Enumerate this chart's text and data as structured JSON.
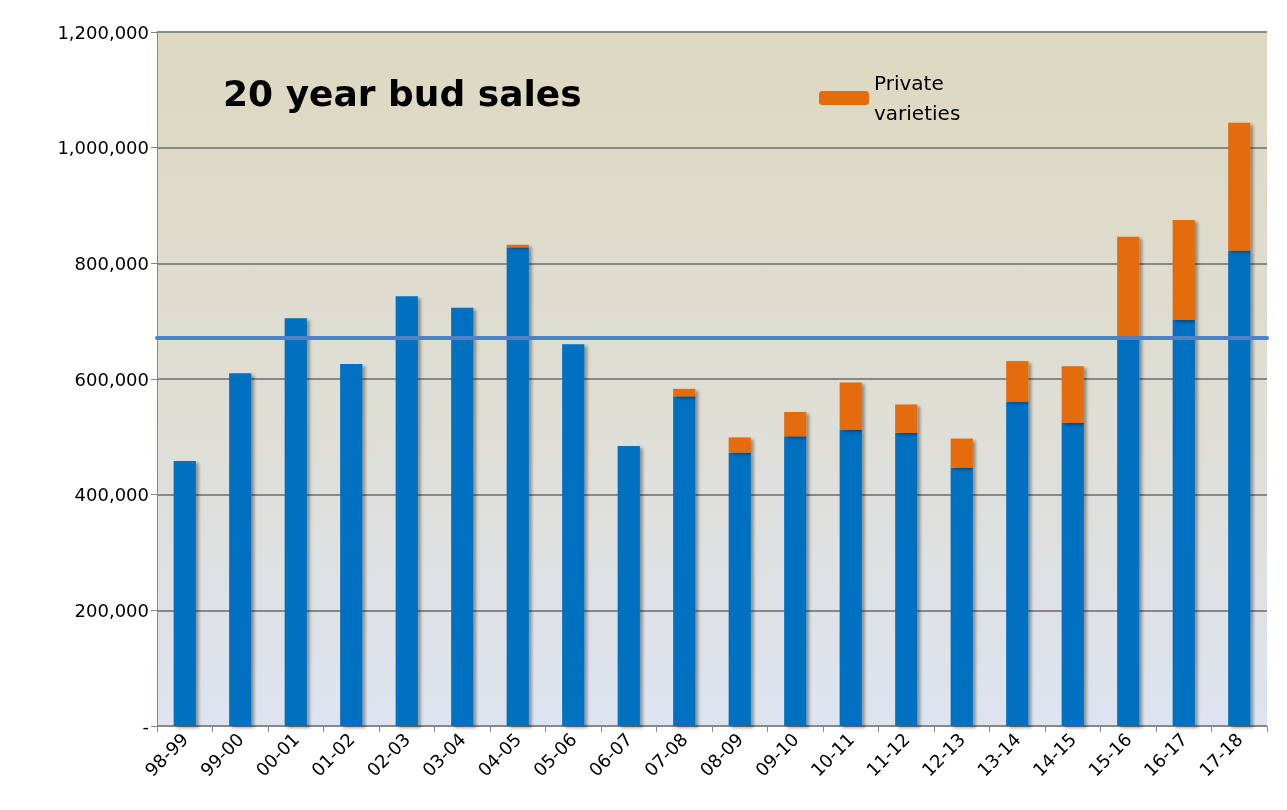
{
  "chart_data": {
    "type": "bar",
    "title": "20 year bud sales",
    "stacked": true,
    "categories": [
      "98-99",
      "99-00",
      "00-01",
      "01-02",
      "02-03",
      "03-04",
      "04-05",
      "05-06",
      "06-07",
      "07-08",
      "08-09",
      "09-10",
      "10-11",
      "11-12",
      "12-13",
      "13-14",
      "14-15",
      "15-16",
      "16-17",
      "17-18"
    ],
    "series": [
      {
        "color": "#0070c0",
        "values": [
          458000,
          610000,
          705000,
          626000,
          743000,
          723000,
          828000,
          660000,
          484000,
          570000,
          473000,
          501000,
          512000,
          507000,
          447000,
          561000,
          524000,
          674000,
          702000,
          822000
        ]
      },
      {
        "name": "Private varieties",
        "color": "#e46c0a",
        "values": [
          0,
          0,
          0,
          0,
          0,
          0,
          4000,
          0,
          0,
          13000,
          26000,
          42000,
          82000,
          49000,
          50000,
          70000,
          98000,
          172000,
          173000,
          221000
        ]
      }
    ],
    "ylim": [
      0,
      1200000
    ],
    "yticks": [
      {
        "value": 0,
        "label": "-"
      },
      {
        "value": 200000,
        "label": "200,000"
      },
      {
        "value": 400000,
        "label": "400,000"
      },
      {
        "value": 600000,
        "label": "600,000"
      },
      {
        "value": 800000,
        "label": "800,000"
      },
      {
        "value": 1000000,
        "label": "1,000,000"
      },
      {
        "value": 1200000,
        "label": "1,200,000"
      }
    ],
    "ref_lines": [
      {
        "axis": "y",
        "value": 671000,
        "color": "#4f81c6"
      }
    ],
    "grid": "y",
    "legend": "top right"
  }
}
